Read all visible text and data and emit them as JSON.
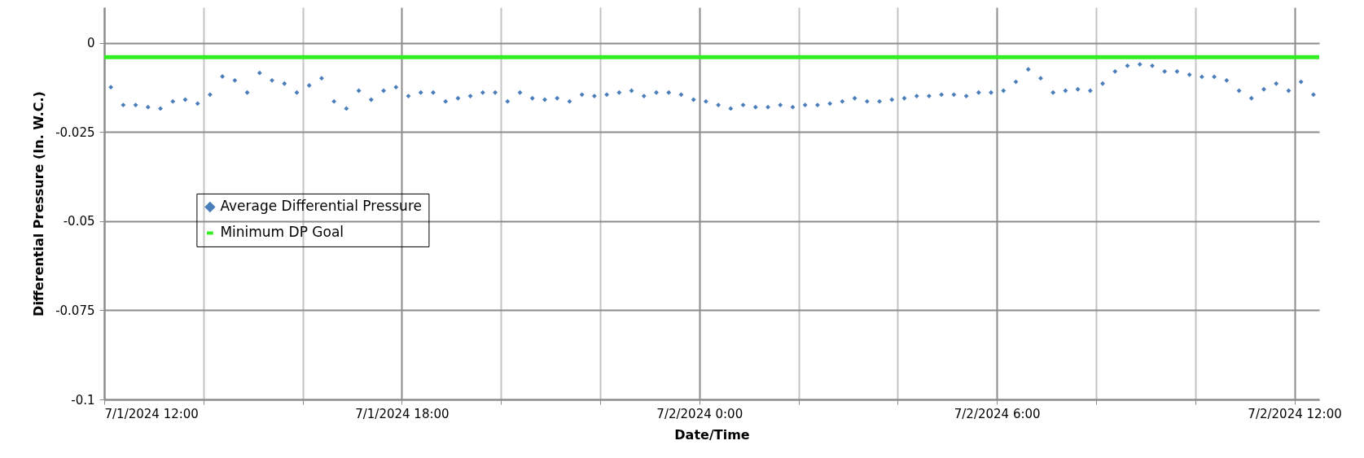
{
  "chart_data": {
    "type": "scatter",
    "xlabel": "Date/Time",
    "ylabel": "Differential Pressure (In. W.C.)",
    "x": [
      "2024-07-01T12:08",
      "2024-07-01T12:23",
      "2024-07-01T12:38",
      "2024-07-01T12:53",
      "2024-07-01T13:08",
      "2024-07-01T13:23",
      "2024-07-01T13:38",
      "2024-07-01T13:53",
      "2024-07-01T14:08",
      "2024-07-01T14:23",
      "2024-07-01T14:38",
      "2024-07-01T14:53",
      "2024-07-01T15:08",
      "2024-07-01T15:23",
      "2024-07-01T15:38",
      "2024-07-01T15:53",
      "2024-07-01T16:08",
      "2024-07-01T16:23",
      "2024-07-01T16:38",
      "2024-07-01T16:53",
      "2024-07-01T17:08",
      "2024-07-01T17:23",
      "2024-07-01T17:38",
      "2024-07-01T17:53",
      "2024-07-01T18:08",
      "2024-07-01T18:23",
      "2024-07-01T18:38",
      "2024-07-01T18:53",
      "2024-07-01T19:08",
      "2024-07-01T19:23",
      "2024-07-01T19:38",
      "2024-07-01T19:53",
      "2024-07-01T20:08",
      "2024-07-01T20:23",
      "2024-07-01T20:38",
      "2024-07-01T20:53",
      "2024-07-01T21:08",
      "2024-07-01T21:23",
      "2024-07-01T21:38",
      "2024-07-01T21:53",
      "2024-07-01T22:08",
      "2024-07-01T22:23",
      "2024-07-01T22:38",
      "2024-07-01T22:53",
      "2024-07-01T23:08",
      "2024-07-01T23:23",
      "2024-07-01T23:38",
      "2024-07-01T23:53",
      "2024-07-02T00:08",
      "2024-07-02T00:23",
      "2024-07-02T00:38",
      "2024-07-02T00:53",
      "2024-07-02T01:08",
      "2024-07-02T01:23",
      "2024-07-02T01:38",
      "2024-07-02T01:53",
      "2024-07-02T02:08",
      "2024-07-02T02:23",
      "2024-07-02T02:38",
      "2024-07-02T02:53",
      "2024-07-02T03:08",
      "2024-07-02T03:23",
      "2024-07-02T03:38",
      "2024-07-02T03:53",
      "2024-07-02T04:08",
      "2024-07-02T04:23",
      "2024-07-02T04:38",
      "2024-07-02T04:53",
      "2024-07-02T05:08",
      "2024-07-02T05:23",
      "2024-07-02T05:38",
      "2024-07-02T05:53",
      "2024-07-02T06:08",
      "2024-07-02T06:23",
      "2024-07-02T06:38",
      "2024-07-02T06:53",
      "2024-07-02T07:08",
      "2024-07-02T07:23",
      "2024-07-02T07:38",
      "2024-07-02T07:53",
      "2024-07-02T08:08",
      "2024-07-02T08:23",
      "2024-07-02T08:38",
      "2024-07-02T08:53",
      "2024-07-02T09:08",
      "2024-07-02T09:23",
      "2024-07-02T09:38",
      "2024-07-02T09:53",
      "2024-07-02T10:08",
      "2024-07-02T10:23",
      "2024-07-02T10:38",
      "2024-07-02T10:53",
      "2024-07-02T11:08",
      "2024-07-02T11:23",
      "2024-07-02T11:38",
      "2024-07-02T11:53",
      "2024-07-02T12:08",
      "2024-07-02T12:23"
    ],
    "series": [
      {
        "name": "Average Differential Pressure",
        "color": "#4a7ebb",
        "values": [
          -0.0124,
          -0.0174,
          -0.0174,
          -0.018,
          -0.0184,
          -0.0164,
          -0.0159,
          -0.017,
          -0.0145,
          -0.0094,
          -0.0105,
          -0.0139,
          -0.0084,
          -0.0105,
          -0.0114,
          -0.0139,
          -0.0119,
          -0.0099,
          -0.0164,
          -0.0184,
          -0.0134,
          -0.0159,
          -0.0134,
          -0.0124,
          -0.0149,
          -0.0139,
          -0.0139,
          -0.0164,
          -0.0155,
          -0.0149,
          -0.0139,
          -0.0139,
          -0.0164,
          -0.0139,
          -0.0155,
          -0.0159,
          -0.0155,
          -0.0164,
          -0.0145,
          -0.0149,
          -0.0145,
          -0.0139,
          -0.0134,
          -0.0149,
          -0.0139,
          -0.0139,
          -0.0145,
          -0.0159,
          -0.0164,
          -0.0174,
          -0.0184,
          -0.0174,
          -0.018,
          -0.018,
          -0.0174,
          -0.018,
          -0.0174,
          -0.0174,
          -0.017,
          -0.0164,
          -0.0155,
          -0.0164,
          -0.0164,
          -0.0159,
          -0.0155,
          -0.0149,
          -0.0149,
          -0.0145,
          -0.0145,
          -0.0149,
          -0.0139,
          -0.0139,
          -0.0134,
          -0.0109,
          -0.0074,
          -0.0099,
          -0.0139,
          -0.0134,
          -0.013,
          -0.0134,
          -0.0114,
          -0.008,
          -0.0064,
          -0.006,
          -0.0064,
          -0.008,
          -0.008,
          -0.0089,
          -0.0095,
          -0.0095,
          -0.0105,
          -0.0134,
          -0.0155,
          -0.013,
          -0.0114,
          -0.0134,
          -0.0109,
          -0.0145
        ]
      }
    ],
    "ref_lines": [
      {
        "axis": "y",
        "value": -0.004,
        "label": "Minimum DP Goal",
        "color": "#33ee22"
      }
    ],
    "xlim": [
      "2024-07-01T12:00",
      "2024-07-02T12:30"
    ],
    "xticks": [
      {
        "value": "2024-07-01T12:00",
        "label": "7/1/2024 12:00"
      },
      {
        "value": "2024-07-01T14:00",
        "label": null
      },
      {
        "value": "2024-07-01T16:00",
        "label": null
      },
      {
        "value": "2024-07-01T18:00",
        "label": "7/1/2024 18:00"
      },
      {
        "value": "2024-07-01T20:00",
        "label": null
      },
      {
        "value": "2024-07-01T22:00",
        "label": null
      },
      {
        "value": "2024-07-02T00:00",
        "label": "7/2/2024 0:00"
      },
      {
        "value": "2024-07-02T02:00",
        "label": null
      },
      {
        "value": "2024-07-02T04:00",
        "label": null
      },
      {
        "value": "2024-07-02T06:00",
        "label": "7/2/2024 6:00"
      },
      {
        "value": "2024-07-02T08:00",
        "label": null
      },
      {
        "value": "2024-07-02T10:00",
        "label": null
      },
      {
        "value": "2024-07-02T12:00",
        "label": "7/2/2024 12:00"
      }
    ],
    "ylim": [
      -0.1,
      0.01
    ],
    "yticks": [
      -0.1,
      -0.075,
      -0.05,
      -0.025,
      0
    ],
    "grid": true,
    "legend": "left",
    "marker": "diamond"
  }
}
